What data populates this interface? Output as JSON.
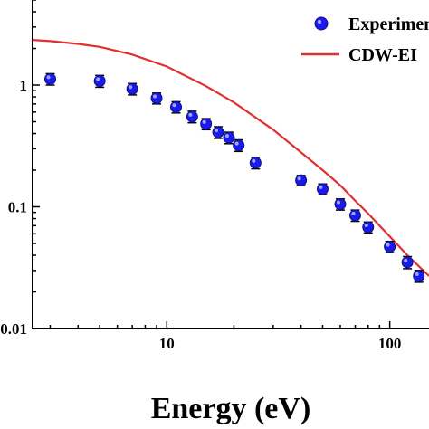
{
  "chart_data": {
    "type": "scatter",
    "xlabel": "Energy (eV)",
    "ylabel": "",
    "x_scale": "log",
    "y_scale": "log",
    "xlim": [
      2.5,
      150
    ],
    "ylim": [
      0.01,
      5
    ],
    "x_ticks": [
      {
        "value": 10,
        "label": "10"
      },
      {
        "value": 100,
        "label": "100"
      }
    ],
    "y_ticks": [
      {
        "value": 1,
        "label": "1"
      },
      {
        "value": 0.1,
        "label": "0.1"
      },
      {
        "value": 0.01,
        "label": "0.01"
      }
    ],
    "legend_position": "top-right",
    "series": [
      {
        "name": "Experiment",
        "kind": "points",
        "color": "#1a1aee",
        "x": [
          3,
          5,
          7,
          9,
          11,
          13,
          15,
          17,
          19,
          21,
          25,
          40,
          50,
          60,
          70,
          80,
          100,
          120,
          135
        ],
        "y": [
          1.12,
          1.08,
          0.93,
          0.78,
          0.66,
          0.55,
          0.48,
          0.41,
          0.37,
          0.32,
          0.23,
          0.165,
          0.14,
          0.105,
          0.085,
          0.068,
          0.047,
          0.035,
          0.027
        ],
        "yerr": [
          0.12,
          0.12,
          0.1,
          0.08,
          0.07,
          0.06,
          0.05,
          0.045,
          0.04,
          0.035,
          0.025,
          0.016,
          0.014,
          0.011,
          0.009,
          0.007,
          0.005,
          0.004,
          0.003
        ]
      },
      {
        "name": "CDW-EI",
        "kind": "line",
        "color": "#e03030",
        "x": [
          2.5,
          3,
          4,
          5,
          7,
          10,
          15,
          20,
          30,
          40,
          50,
          60,
          70,
          80,
          100,
          120,
          150
        ],
        "y": [
          2.35,
          2.3,
          2.18,
          2.06,
          1.78,
          1.42,
          0.98,
          0.72,
          0.43,
          0.28,
          0.2,
          0.15,
          0.112,
          0.088,
          0.057,
          0.04,
          0.027
        ]
      }
    ]
  }
}
